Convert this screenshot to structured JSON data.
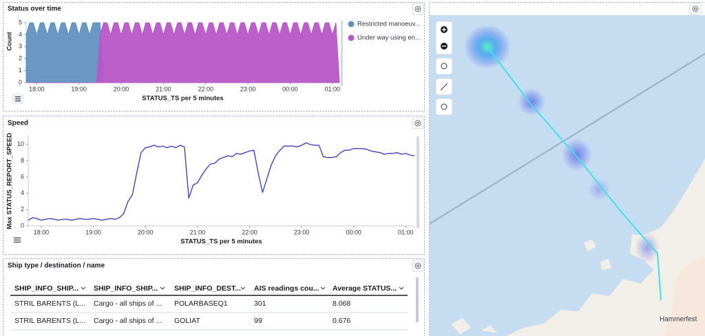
{
  "chart_data": [
    {
      "type": "area",
      "title": "Status over time",
      "x_label": "STATUS_TS per 5 minutes",
      "y_label": "Count",
      "categories": [
        null,
        null,
        null,
        "18:00",
        null,
        null,
        null,
        null,
        null,
        null,
        null,
        null,
        null,
        null,
        null,
        "19:00",
        null,
        null,
        null,
        null,
        null,
        null,
        null,
        null,
        null,
        null,
        null,
        "20:00",
        null,
        null,
        null,
        null,
        null,
        null,
        null,
        null,
        null,
        null,
        null,
        "21:00",
        null,
        null,
        null,
        null,
        null,
        null,
        null,
        null,
        null,
        null,
        null,
        "22:00",
        null,
        null,
        null,
        null,
        null,
        null,
        null,
        null,
        null,
        null,
        null,
        "23:00",
        null,
        null,
        null,
        null,
        null,
        null,
        null,
        null,
        null,
        null,
        null,
        "00:00",
        null,
        null,
        null,
        null,
        null,
        null,
        null,
        null,
        null,
        null,
        null,
        "01:00",
        null,
        null
      ],
      "series": [
        {
          "name": "Restricted manoeuv...",
          "color": "#6092c0",
          "values": [
            4,
            5,
            5,
            4,
            5,
            5,
            4,
            5,
            5,
            4,
            5,
            5,
            4,
            5,
            5,
            4,
            5,
            5,
            4,
            5,
            5,
            5,
            0,
            0,
            0,
            0,
            0,
            0,
            0,
            0,
            0,
            0,
            0,
            0,
            0,
            0,
            0,
            0,
            0,
            0,
            0,
            0,
            0,
            0,
            0,
            0,
            0,
            0,
            0,
            0,
            0,
            0,
            0,
            0,
            0,
            0,
            0,
            0,
            0,
            0,
            0,
            0,
            0,
            0,
            0,
            0,
            0,
            0,
            0,
            0,
            0,
            0,
            0,
            0,
            0,
            0,
            0,
            0,
            0,
            0,
            0,
            0,
            0,
            0,
            0,
            0,
            0,
            0,
            0,
            0
          ]
        },
        {
          "name": "Under way using en...",
          "color": "#b756c8",
          "values": [
            0,
            0,
            0,
            0,
            0,
            0,
            0,
            0,
            0,
            0,
            0,
            0,
            0,
            0,
            0,
            0,
            0,
            0,
            0,
            0,
            0,
            4,
            5,
            5,
            4,
            5,
            5,
            4,
            5,
            5,
            4,
            5,
            5,
            4,
            5,
            5,
            4,
            5,
            5,
            4,
            5,
            5,
            4,
            5,
            5,
            4,
            5,
            5,
            4,
            5,
            5,
            4,
            5,
            5,
            4,
            5,
            5,
            4,
            5,
            5,
            4,
            5,
            5,
            4,
            5,
            5,
            4,
            5,
            5,
            4,
            5,
            5,
            4,
            5,
            5,
            4,
            5,
            5,
            4,
            5,
            5,
            4,
            5,
            5,
            4,
            5,
            5,
            4,
            5,
            0
          ]
        }
      ],
      "ylim": [
        0,
        5
      ],
      "yticks": [
        0,
        1,
        2,
        3,
        4,
        5
      ]
    },
    {
      "type": "line",
      "title": "Speed",
      "x_label": "STATUS_TS per 5 minutes",
      "y_label": "Max STATUS_REPORT_SPEED",
      "categories": [
        null,
        null,
        null,
        "18:00",
        null,
        null,
        null,
        null,
        null,
        null,
        null,
        null,
        null,
        null,
        null,
        "19:00",
        null,
        null,
        null,
        null,
        null,
        null,
        null,
        null,
        null,
        null,
        null,
        "20:00",
        null,
        null,
        null,
        null,
        null,
        null,
        null,
        null,
        null,
        null,
        null,
        "21:00",
        null,
        null,
        null,
        null,
        null,
        null,
        null,
        null,
        null,
        null,
        null,
        "22:00",
        null,
        null,
        null,
        null,
        null,
        null,
        null,
        null,
        null,
        null,
        null,
        "23:00",
        null,
        null,
        null,
        null,
        null,
        null,
        null,
        null,
        null,
        null,
        null,
        "00:00",
        null,
        null,
        null,
        null,
        null,
        null,
        null,
        null,
        null,
        null,
        null,
        "01:00",
        null,
        null
      ],
      "color": "#4d4fbf",
      "values": [
        0.7,
        1.0,
        0.9,
        0.7,
        0.8,
        0.9,
        0.8,
        0.7,
        0.8,
        0.8,
        0.7,
        0.8,
        0.9,
        0.8,
        0.8,
        0.9,
        0.8,
        0.7,
        0.8,
        0.9,
        0.8,
        1.0,
        1.5,
        3.0,
        3.8,
        6.5,
        9.0,
        9.6,
        9.7,
        9.9,
        9.7,
        9.8,
        9.6,
        9.8,
        9.6,
        9.9,
        9.7,
        3.4,
        5.0,
        5.3,
        6.2,
        7.0,
        7.6,
        7.7,
        8.2,
        8.4,
        8.6,
        8.5,
        8.9,
        8.8,
        9.0,
        9.2,
        9.3,
        6.5,
        4.1,
        5.8,
        7.5,
        8.6,
        9.3,
        9.8,
        9.8,
        9.8,
        9.7,
        9.9,
        10.2,
        10.0,
        9.9,
        9.9,
        8.5,
        8.4,
        8.4,
        8.5,
        9.0,
        9.3,
        9.3,
        9.5,
        9.5,
        9.5,
        9.4,
        9.2,
        9.1,
        9.0,
        8.8,
        8.9,
        8.9,
        9.0,
        8.8,
        8.9,
        8.7,
        8.6
      ],
      "ylim": [
        0,
        11
      ],
      "yticks": [
        0,
        2,
        4,
        6,
        8,
        10
      ]
    }
  ],
  "table": {
    "title": "Ship type / destination / name",
    "headers": [
      "SHIP_INFO_SHIP...",
      "SHIP_INFO_SHIP...",
      "SHIP_INFO_DEST...",
      "AIS readings cou...",
      "Average STATUS..."
    ],
    "rows": [
      [
        "STRIL BARENTS (L...",
        "Cargo - all ships of ...",
        "POLARBASEQ1",
        "301",
        "8.068"
      ],
      [
        "STRIL BARENTS (L...",
        "Cargo - all ships of ...",
        "GOLIAT",
        "99",
        "0.676"
      ]
    ]
  },
  "map": {
    "place_label": "Hammerfest"
  }
}
